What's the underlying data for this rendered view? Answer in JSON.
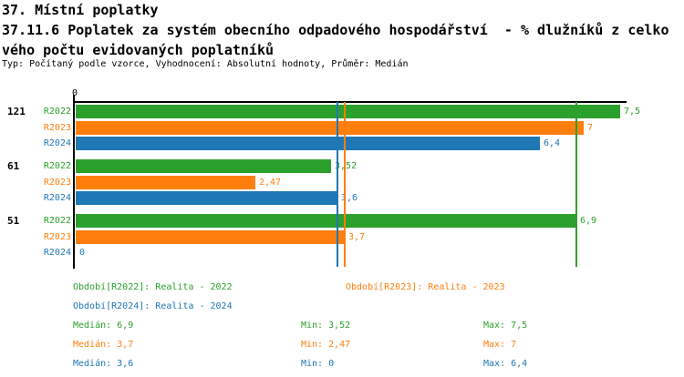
{
  "page": {
    "title_line1": "37. Místní poplatky",
    "title_line2": "37.11.6 Poplatek za systém obecního odpadového hospodářství  - % dlužníků z celko",
    "title_line3": "vého počtu evidovaných poplatníků",
    "meta": "Typ: Počítaný podle vzorce, Vyhodnocení: Absolutní hodnoty, Průměr: Medián"
  },
  "chart_data": {
    "type": "bar",
    "orientation": "horizontal",
    "title": "37.11.6 Poplatek za systém obecního odpadového hospodářství - % dlužníků z celkového počtu evidovaných poplatníků",
    "axis": {
      "position": "top",
      "tick_label": "0",
      "xmin": 0,
      "xmax": 7.6
    },
    "grid": false,
    "categories": [
      "121",
      "61",
      "51"
    ],
    "series": [
      {
        "name": "R2022",
        "color": "#2ca02c",
        "values": [
          7.5,
          3.52,
          6.9
        ],
        "value_labels": [
          "7,5",
          "3,52",
          "6,9"
        ],
        "median": 6.9
      },
      {
        "name": "R2023",
        "color": "#ff7f0e",
        "values": [
          7.0,
          2.47,
          3.7
        ],
        "value_labels": [
          "7",
          "2,47",
          "3,7"
        ],
        "median": 3.7
      },
      {
        "name": "R2024",
        "color": "#1f77b4",
        "values": [
          6.4,
          3.6,
          0
        ],
        "value_labels": [
          "6,4",
          "3,6",
          "0"
        ],
        "median": 3.6
      }
    ],
    "median_reference_lines": [
      {
        "series": "R2022",
        "value": 6.9,
        "color": "#2ca02c"
      },
      {
        "series": "R2023",
        "value": 3.7,
        "color": "#ff7f0e"
      },
      {
        "series": "R2024",
        "value": 3.6,
        "color": "#1f77b4"
      }
    ]
  },
  "legend": {
    "items": [
      {
        "label": "Období[R2022]: Realita - 2022",
        "color": "#2ca02c"
      },
      {
        "label": "Období[R2023]: Realita - 2023",
        "color": "#ff7f0e"
      },
      {
        "label": "Období[R2024]: Realita - 2024",
        "color": "#1f77b4"
      }
    ]
  },
  "stats": {
    "rows": [
      {
        "median": "Medián: 6,9",
        "min": "Min: 3,52",
        "max": "Max: 7,5",
        "color": "#2ca02c"
      },
      {
        "median": "Medián: 3,7",
        "min": "Min: 2,47",
        "max": "Max: 7",
        "color": "#ff7f0e"
      },
      {
        "median": "Medián: 3,6",
        "min": "Min: 0",
        "max": "Max: 6,4",
        "color": "#1f77b4"
      }
    ]
  }
}
